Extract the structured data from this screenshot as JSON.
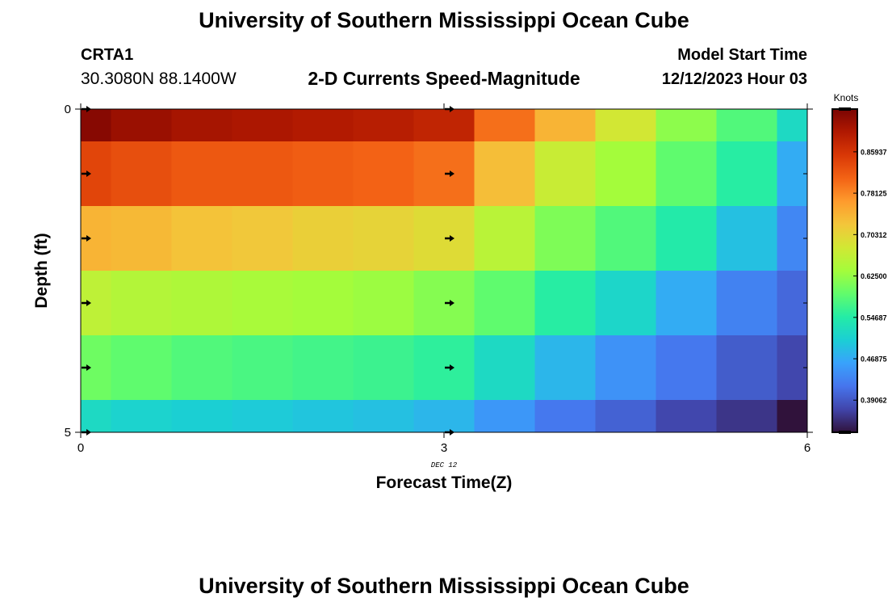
{
  "page": {
    "title": "University of Southern Mississippi Ocean Cube",
    "footer_title": "University of Southern Mississippi Ocean Cube"
  },
  "header": {
    "station": "CRTA1",
    "coords": "30.3080N  88.1400W",
    "plot_title": "2-D Currents Speed-Magnitude",
    "model_label": "Model Start Time",
    "model_time": "12/12/2023 Hour 03"
  },
  "chart_data": {
    "type": "heatmap",
    "title": "2-D Currents Speed-Magnitude",
    "xlabel": "Forecast Time(Z)",
    "ylabel": "Depth (ft)",
    "x_ticks": [
      "0",
      "3",
      "6"
    ],
    "x_sublabel": "DEC 12",
    "xlim": [
      0,
      6
    ],
    "y_ticks": [
      "0",
      "5"
    ],
    "ylim": [
      0,
      5
    ],
    "x_edges": [
      0,
      0.25,
      0.75,
      1.25,
      1.75,
      2.25,
      2.75,
      3.25,
      3.75,
      4.25,
      4.75,
      5.25,
      5.75,
      6
    ],
    "y_edges": [
      0,
      0.5,
      1.5,
      2.5,
      3.5,
      4.5,
      5
    ],
    "arrow_x": [
      0,
      3
    ],
    "arrow_y": [
      0,
      1,
      2,
      3,
      4,
      5
    ],
    "arrow_direction": "east",
    "values": [
      [
        0.93,
        0.915,
        0.905,
        0.9,
        0.895,
        0.89,
        0.88,
        0.8,
        0.74,
        0.68,
        0.62,
        0.58,
        0.52
      ],
      [
        0.84,
        0.83,
        0.82,
        0.82,
        0.815,
        0.81,
        0.8,
        0.73,
        0.67,
        0.635,
        0.59,
        0.55,
        0.47
      ],
      [
        0.74,
        0.735,
        0.725,
        0.72,
        0.71,
        0.705,
        0.695,
        0.655,
        0.61,
        0.58,
        0.545,
        0.49,
        0.435
      ],
      [
        0.66,
        0.65,
        0.645,
        0.64,
        0.635,
        0.63,
        0.615,
        0.59,
        0.55,
        0.515,
        0.47,
        0.43,
        0.405
      ],
      [
        0.6,
        0.59,
        0.58,
        0.575,
        0.57,
        0.565,
        0.555,
        0.52,
        0.48,
        0.445,
        0.42,
        0.395,
        0.375
      ],
      [
        0.52,
        0.51,
        0.505,
        0.5,
        0.495,
        0.49,
        0.48,
        0.45,
        0.42,
        0.4,
        0.375,
        0.36,
        0.33
      ]
    ],
    "colorbar": {
      "label": "Knots",
      "range": [
        0.33,
        0.94
      ],
      "ticks": [
        0.859375,
        0.78125,
        0.703125,
        0.625,
        0.546875,
        0.46875,
        0.390625
      ],
      "tick_labels": [
        "0.85937",
        "0.78125",
        "0.70312",
        "0.62500",
        "0.54687",
        "0.46875",
        "0.39062"
      ]
    },
    "colorscale": [
      "#30123b",
      "#4145ab",
      "#4675ed",
      "#39a2fc",
      "#1bcfd4",
      "#24eca6",
      "#61fc6c",
      "#a4fc3b",
      "#d1e834",
      "#f3c63a",
      "#fe9b2d",
      "#f36315",
      "#d93806",
      "#b11901",
      "#7a0402"
    ]
  }
}
